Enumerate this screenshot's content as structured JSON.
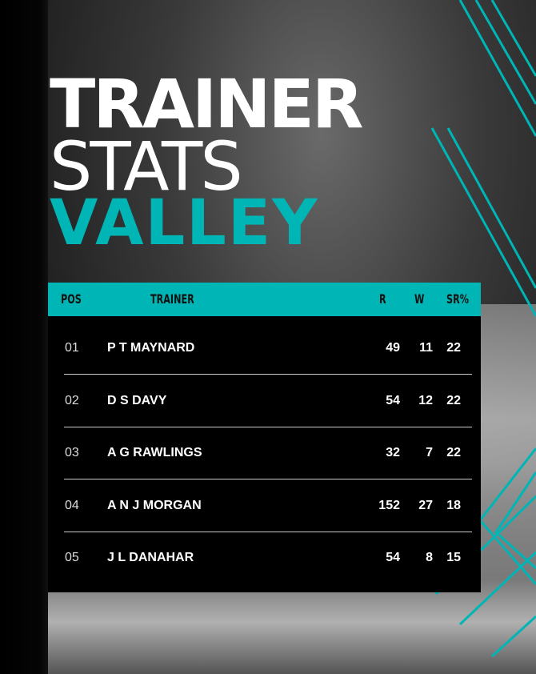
{
  "title": {
    "line1": "TRAINER",
    "line2": "STATS",
    "line3": "VALLEY"
  },
  "colors": {
    "accent": "#00b5b5",
    "table_bg": "#000000"
  },
  "table": {
    "headers": [
      "POS",
      "TRAINER",
      "R",
      "W",
      "SR%"
    ],
    "rows": [
      {
        "pos": "01",
        "trainer": "P T MAYNARD",
        "r": "49",
        "w": "11",
        "sr": "22"
      },
      {
        "pos": "02",
        "trainer": "D S DAVY",
        "r": "54",
        "w": "12",
        "sr": "22"
      },
      {
        "pos": "03",
        "trainer": "A G RAWLINGS",
        "r": "32",
        "w": "7",
        "sr": "22"
      },
      {
        "pos": "04",
        "trainer": "A N J MORGAN",
        "r": "152",
        "w": "27",
        "sr": "18"
      },
      {
        "pos": "05",
        "trainer": "J L DANAHAR",
        "r": "54",
        "w": "8",
        "sr": "15"
      }
    ]
  }
}
